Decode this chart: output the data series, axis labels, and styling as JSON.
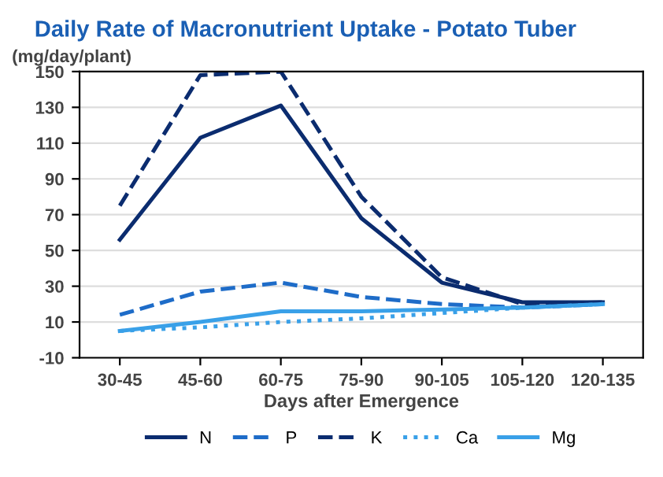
{
  "chart_data": {
    "type": "line",
    "title": "Daily Rate of Macronutrient Uptake - Potato Tuber",
    "ylabel": "(mg/day/plant)",
    "xlabel": "Days after Emergence",
    "categories": [
      "30-45",
      "45-60",
      "60-75",
      "75-90",
      "90-105",
      "105-120",
      "120-135"
    ],
    "series": [
      {
        "name": "N",
        "color": "#0b2c6f",
        "line_style": "solid",
        "values": [
          56,
          113,
          131,
          68,
          32,
          21,
          21
        ]
      },
      {
        "name": "P",
        "color": "#1e6cc8",
        "line_style": "dashed",
        "values": [
          14,
          27,
          32,
          24,
          20,
          18,
          20
        ]
      },
      {
        "name": "K",
        "color": "#0b2c6f",
        "line_style": "dashed",
        "values": [
          75,
          148,
          150,
          80,
          35,
          20,
          21
        ]
      },
      {
        "name": "Ca",
        "color": "#39a0e8",
        "line_style": "dotted",
        "values": [
          5,
          7,
          10,
          12,
          15,
          18,
          20
        ]
      },
      {
        "name": "Mg",
        "color": "#39a0e8",
        "line_style": "solid",
        "values": [
          5,
          10,
          16,
          16,
          17,
          18,
          20
        ]
      }
    ],
    "ylim": [
      -10,
      150
    ],
    "yticks": [
      -10,
      10,
      30,
      50,
      70,
      90,
      110,
      130,
      150
    ],
    "grid": "y",
    "legend": "bottom",
    "marker": "none"
  }
}
